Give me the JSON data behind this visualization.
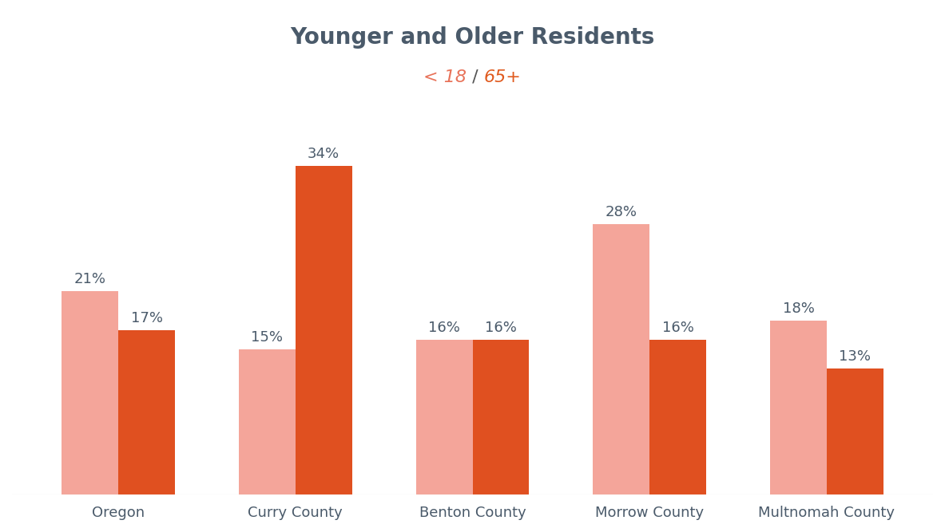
{
  "title": "Younger and Older Residents",
  "subtitle_lt18": "< 18",
  "subtitle_slash": " / ",
  "subtitle_65plus": "65+",
  "subtitle_color_lt18": "#E8735A",
  "subtitle_color_slash": "#555555",
  "subtitle_color_65plus": "#E05A1E",
  "title_color": "#4A5A6A",
  "categories": [
    "Oregon",
    "Curry County",
    "Benton County",
    "Morrow County",
    "Multnomah County"
  ],
  "young_values": [
    21,
    15,
    16,
    28,
    18
  ],
  "old_values": [
    17,
    34,
    16,
    16,
    13
  ],
  "young_color": "#F4A59A",
  "old_color": "#E05020",
  "bar_width": 0.32,
  "ylim": [
    0,
    40
  ],
  "label_fontsize": 13,
  "tick_fontsize": 13,
  "title_fontsize": 20,
  "subtitle_fontsize": 16,
  "background_color": "#FFFFFF"
}
